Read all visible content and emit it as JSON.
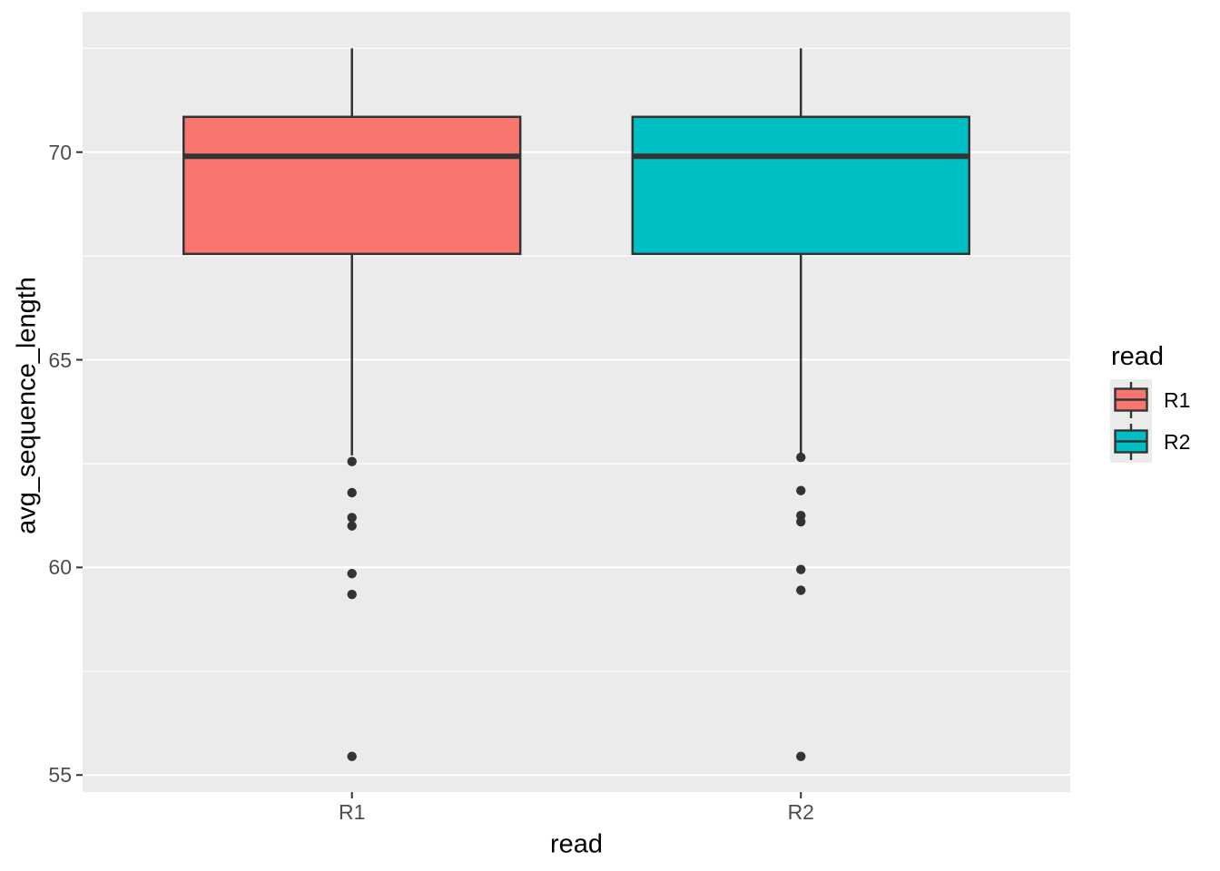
{
  "colors": {
    "panel_bg": "#EBEBEB",
    "grid": "#FFFFFF",
    "box_stroke": "#333333",
    "point": "#333333",
    "tick_mark": "#333333",
    "tick_label": "#4D4D4D",
    "axis_title": "#000000",
    "legend_key_bg": "#EBEBEB",
    "series_r1": "#F8766D",
    "series_r2": "#00BFC4"
  },
  "chart_data": {
    "type": "boxplot",
    "title": "",
    "xlabel": "read",
    "ylabel": "avg_sequence_length",
    "categories": [
      "R1",
      "R2"
    ],
    "y_ticks": [
      55,
      60,
      65,
      70
    ],
    "y_minor_ticks": [
      57.5,
      62.5,
      67.5,
      72.5
    ],
    "ylim": [
      54.59,
      73.38
    ],
    "grid": "on",
    "legend_position": "right",
    "series": [
      {
        "name": "R1",
        "color": "#F8766D",
        "q1": 67.55,
        "median": 69.9,
        "q3": 70.85,
        "whisker_low": 62.7,
        "whisker_high": 72.5,
        "outliers": [
          62.55,
          61.8,
          61.2,
          61.0,
          59.85,
          59.35,
          55.45
        ]
      },
      {
        "name": "R2",
        "color": "#00BFC4",
        "q1": 67.55,
        "median": 69.9,
        "q3": 70.85,
        "whisker_low": 62.75,
        "whisker_high": 72.5,
        "outliers": [
          62.65,
          61.85,
          61.25,
          61.1,
          59.95,
          59.45,
          55.45
        ]
      }
    ],
    "legend": {
      "title": "read",
      "entries": [
        {
          "label": "R1",
          "color": "#F8766D"
        },
        {
          "label": "R2",
          "color": "#00BFC4"
        }
      ]
    }
  }
}
